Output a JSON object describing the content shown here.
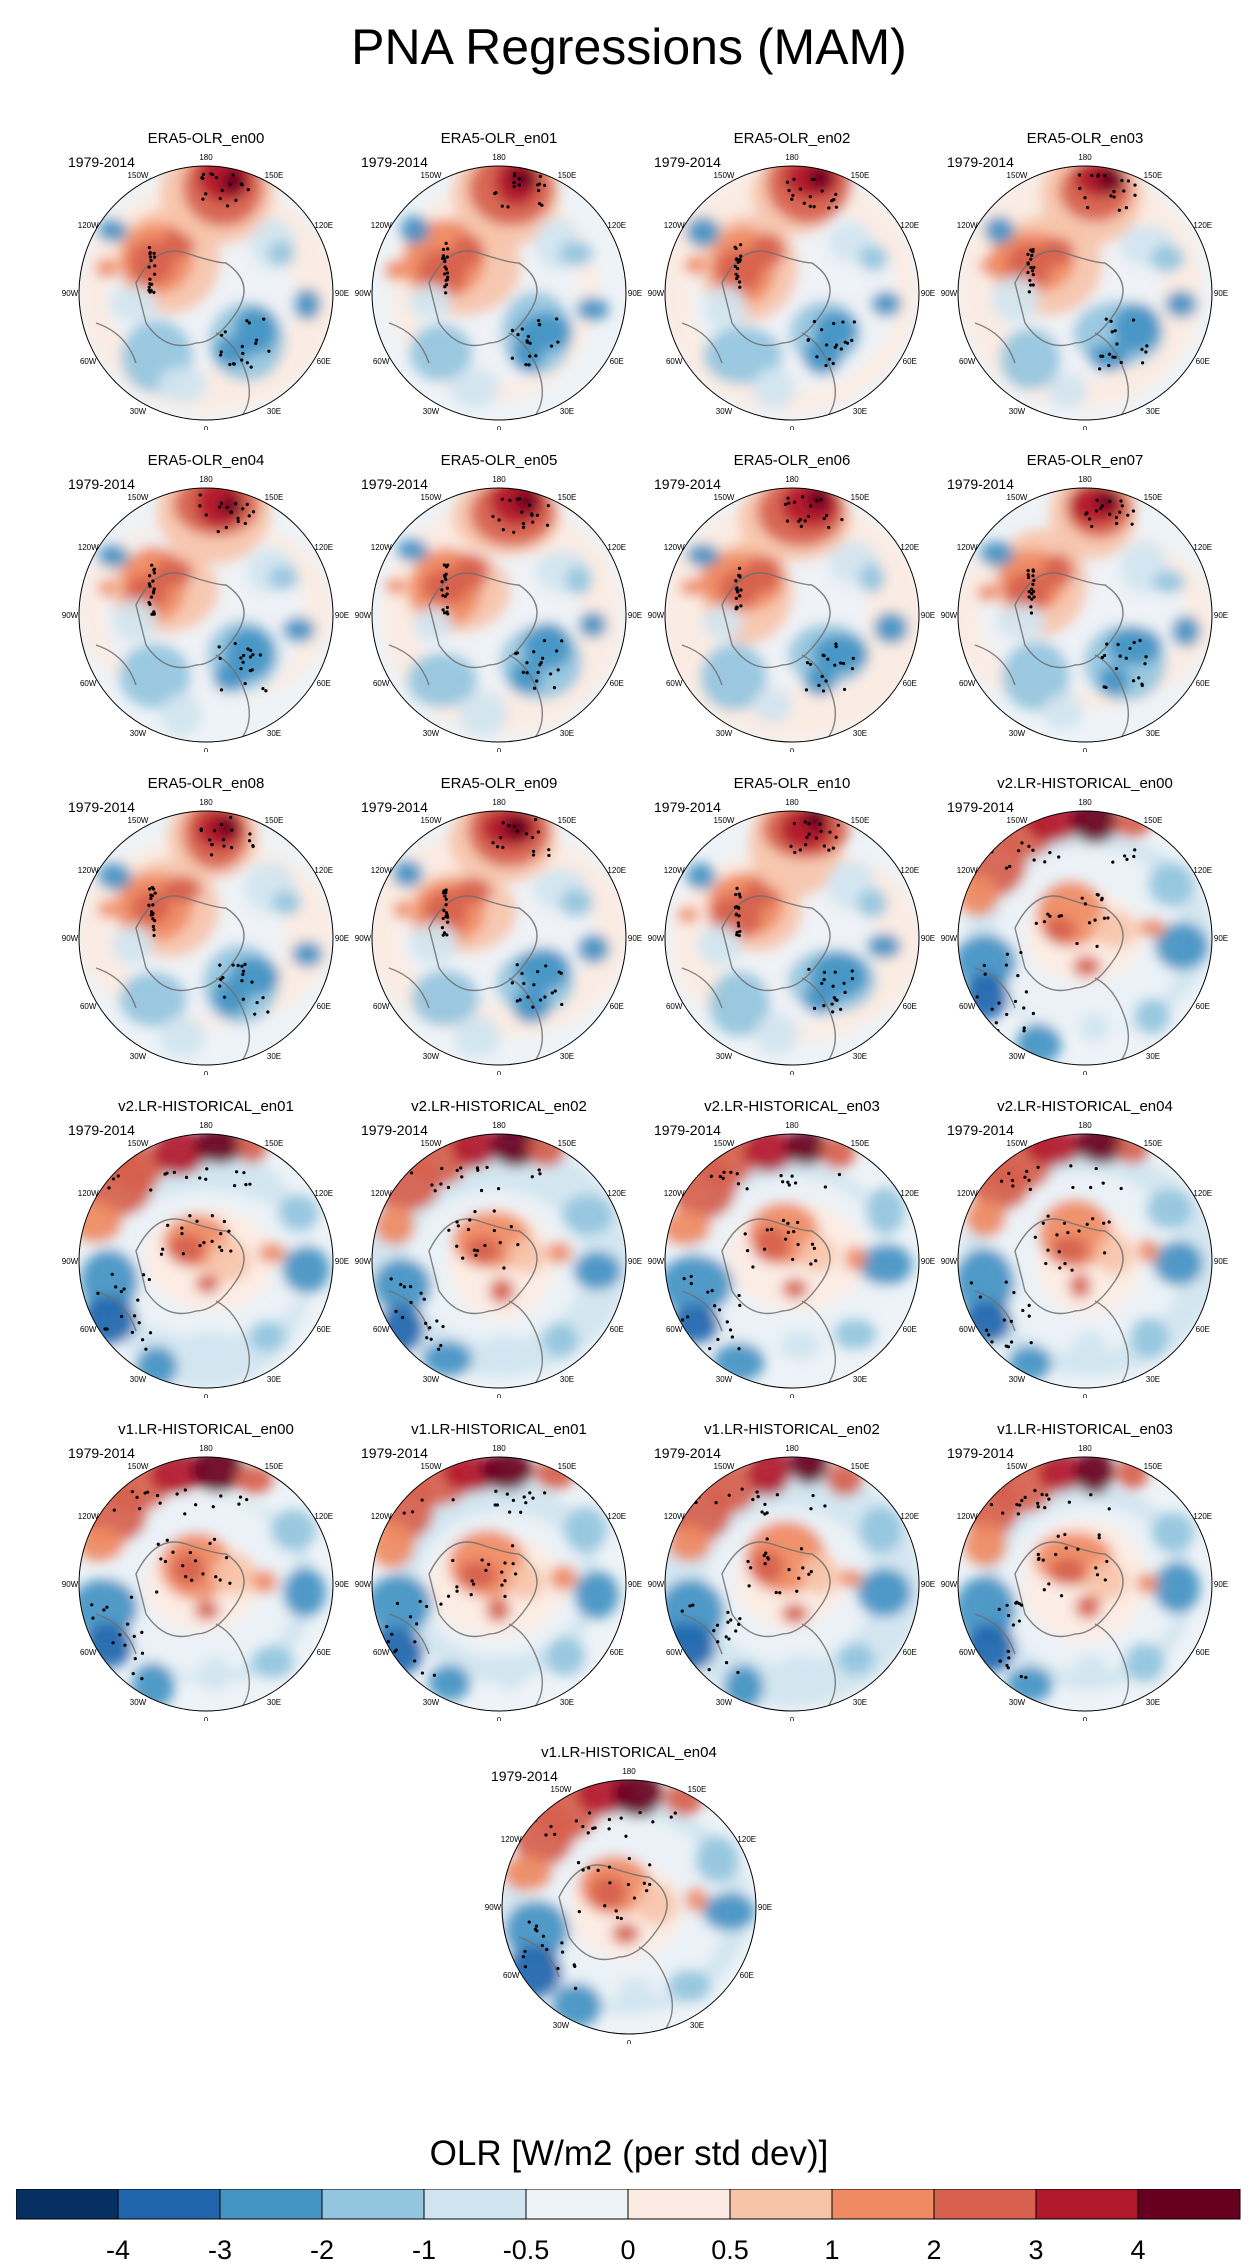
{
  "title": "PNA Regressions (MAM)",
  "colors": {
    "fill": [
      "#053061",
      "#2166ac",
      "#4393c3",
      "#92c5de",
      "#d1e5f0",
      "#eef3f7",
      "#fcebe2",
      "#f7c4aa",
      "#ef8a62",
      "#d6604d",
      "#b2182b",
      "#67001f"
    ]
  },
  "chart_data": {
    "type": "heatmap",
    "projection": "north polar stereographic",
    "panels": [
      {
        "title": "ERA5-OLR_en00",
        "period": "1979-2014",
        "pattern": "era5"
      },
      {
        "title": "ERA5-OLR_en01",
        "period": "1979-2014",
        "pattern": "era5"
      },
      {
        "title": "ERA5-OLR_en02",
        "period": "1979-2014",
        "pattern": "era5"
      },
      {
        "title": "ERA5-OLR_en03",
        "period": "1979-2014",
        "pattern": "era5"
      },
      {
        "title": "ERA5-OLR_en04",
        "period": "1979-2014",
        "pattern": "era5"
      },
      {
        "title": "ERA5-OLR_en05",
        "period": "1979-2014",
        "pattern": "era5"
      },
      {
        "title": "ERA5-OLR_en06",
        "period": "1979-2014",
        "pattern": "era5"
      },
      {
        "title": "ERA5-OLR_en07",
        "period": "1979-2014",
        "pattern": "era5"
      },
      {
        "title": "ERA5-OLR_en08",
        "period": "1979-2014",
        "pattern": "era5"
      },
      {
        "title": "ERA5-OLR_en09",
        "period": "1979-2014",
        "pattern": "era5"
      },
      {
        "title": "ERA5-OLR_en10",
        "period": "1979-2014",
        "pattern": "era5"
      },
      {
        "title": "v2.LR-HISTORICAL_en00",
        "period": "1979-2014",
        "pattern": "model"
      },
      {
        "title": "v2.LR-HISTORICAL_en01",
        "period": "1979-2014",
        "pattern": "model"
      },
      {
        "title": "v2.LR-HISTORICAL_en02",
        "period": "1979-2014",
        "pattern": "model"
      },
      {
        "title": "v2.LR-HISTORICAL_en03",
        "period": "1979-2014",
        "pattern": "model"
      },
      {
        "title": "v2.LR-HISTORICAL_en04",
        "period": "1979-2014",
        "pattern": "model"
      },
      {
        "title": "v1.LR-HISTORICAL_en00",
        "period": "1979-2014",
        "pattern": "model"
      },
      {
        "title": "v1.LR-HISTORICAL_en01",
        "period": "1979-2014",
        "pattern": "model"
      },
      {
        "title": "v1.LR-HISTORICAL_en02",
        "period": "1979-2014",
        "pattern": "model"
      },
      {
        "title": "v1.LR-HISTORICAL_en03",
        "period": "1979-2014",
        "pattern": "model"
      },
      {
        "title": "v1.LR-HISTORICAL_en04",
        "period": "1979-2014",
        "pattern": "model"
      }
    ],
    "longitude_labels": [
      "180",
      "150E",
      "120E",
      "90E",
      "60E",
      "30E",
      "0",
      "30W",
      "60W",
      "90W",
      "120W",
      "150W"
    ],
    "colorbar": {
      "label": "OLR [W/m2 (per std dev)]",
      "levels": [
        -4,
        -3,
        -2,
        -1,
        -0.5,
        0,
        0.5,
        1,
        2,
        3,
        4
      ],
      "tick_labels": [
        "-4",
        "-3",
        "-2",
        "-1",
        "-0.5",
        "0",
        "0.5",
        "1",
        "2",
        "3",
        "4"
      ]
    }
  }
}
